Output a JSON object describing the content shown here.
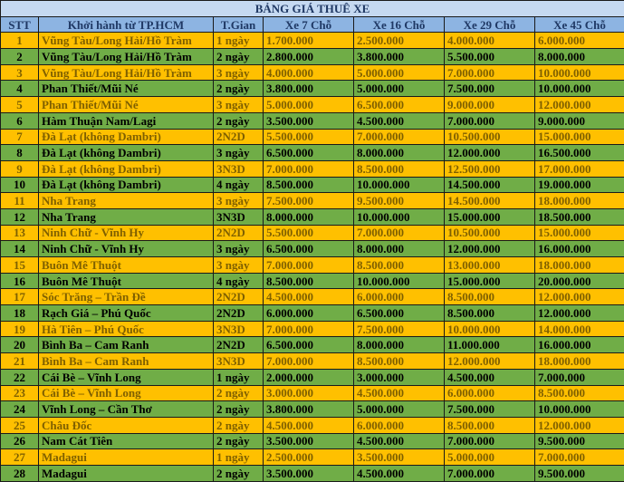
{
  "colors": {
    "title_bg": "#c5d9f1",
    "header_bg": "#8db4e2",
    "green": "#70ad47",
    "yellow": "#ffc000"
  },
  "title": "BẢNG GIÁ THUÊ XE",
  "headers": [
    "STT",
    "Khởi hành từ TP.HCM",
    "T.Gian",
    "Xe 7 Chỗ",
    "Xe 16 Chỗ",
    "Xe 29 Chỗ",
    "Xe 45 Chỗ"
  ],
  "rows": [
    {
      "color": "yellow",
      "stt": "1",
      "route": "Vũng Tàu/Long Hải/Hồ Tràm",
      "time": "1 ngày",
      "p7": "1.700.000",
      "p16": "2.500.000",
      "p29": "4.000.000",
      "p45": "6.000.000"
    },
    {
      "color": "green",
      "stt": "2",
      "route": "Vũng Tàu/Long Hải/Hồ Tràm",
      "time": "2 ngày",
      "p7": "2.800.000",
      "p16": "3.800.000",
      "p29": "5.500.000",
      "p45": "8.000.000"
    },
    {
      "color": "yellow",
      "stt": "3",
      "route": "Vũng Tàu/Long Hải/Hồ Tràm",
      "time": "3 ngày",
      "p7": "4.000.000",
      "p16": "5.000.000",
      "p29": "7.000.000",
      "p45": "10.000.000"
    },
    {
      "color": "green",
      "stt": "4",
      "route": "Phan Thiết/Mũi Né",
      "time": "2 ngày",
      "p7": "3.800.000",
      "p16": "5.000.000",
      "p29": "7.500.000",
      "p45": "10.000.000"
    },
    {
      "color": "yellow",
      "stt": "5",
      "route": "Phan Thiết/Mũi Né",
      "time": "3 ngày",
      "p7": "5.000.000",
      "p16": "6.500.000",
      "p29": "9.000.000",
      "p45": "12.000.000"
    },
    {
      "color": "green",
      "stt": "6",
      "route": "Hàm Thuận Nam/Lagi",
      "time": "2 ngày",
      "p7": "3.500.000",
      "p16": "4.500.000",
      "p29": "7.000.000",
      "p45": "9.000.000"
    },
    {
      "color": "yellow",
      "stt": "7",
      "route": "Đà Lạt (không Dambri)",
      "time": "2N2D",
      "p7": "5.500.000",
      "p16": "7.000.000",
      "p29": "10.500.000",
      "p45": "15.000.000"
    },
    {
      "color": "green",
      "stt": "8",
      "route": "Đà Lạt (không Dambri)",
      "time": "3 ngày",
      "p7": "6.500.000",
      "p16": "8.000.000",
      "p29": "12.000.000",
      "p45": "16.500.000"
    },
    {
      "color": "yellow",
      "stt": "9",
      "route": "Đà Lạt (không Dambri)",
      "time": "3N3D",
      "p7": "7.000.000",
      "p16": "8.500.000",
      "p29": "12.500.000",
      "p45": "17.000.000"
    },
    {
      "color": "green",
      "stt": "10",
      "route": "Đà Lạt (không Dambri)",
      "time": "4 ngày",
      "p7": "8.500.000",
      "p16": "10.000.000",
      "p29": "14.500.000",
      "p45": "19.000.000"
    },
    {
      "color": "yellow",
      "stt": "11",
      "route": "Nha Trang",
      "time": "3 ngày",
      "p7": "7.500.000",
      "p16": "9.500.000",
      "p29": "14.500.000",
      "p45": "18.000.000"
    },
    {
      "color": "green",
      "stt": "12",
      "route": "Nha Trang",
      "time": "3N3D",
      "p7": "8.000.000",
      "p16": "10.000.000",
      "p29": "15.000.000",
      "p45": "18.500.000"
    },
    {
      "color": "yellow",
      "stt": "13",
      "route": "Ninh Chữ - Vĩnh Hy",
      "time": "2N2D",
      "p7": "5.500.000",
      "p16": "7.000.000",
      "p29": "10.500.000",
      "p45": "15.000.000"
    },
    {
      "color": "green",
      "stt": "14",
      "route": "Ninh Chữ - Vĩnh Hy",
      "time": "3 ngày",
      "p7": "6.500.000",
      "p16": "8.000.000",
      "p29": "12.000.000",
      "p45": "16.000.000"
    },
    {
      "color": "yellow",
      "stt": "15",
      "route": "Buôn Mê Thuột",
      "time": "3 ngày",
      "p7": "7.000.000",
      "p16": "8.500.000",
      "p29": "13.000.000",
      "p45": "18.000.000"
    },
    {
      "color": "green",
      "stt": "16",
      "route": "Buôn Mê Thuột",
      "time": "4 ngày",
      "p7": "8.500.000",
      "p16": "10.000.000",
      "p29": "15.000.000",
      "p45": "20.000.000"
    },
    {
      "color": "yellow",
      "stt": "17",
      "route": "Sóc Trăng – Trần Đề",
      "time": "2N2D",
      "p7": "4.500.000",
      "p16": "6.000.000",
      "p29": "8.500.000",
      "p45": "12.000.000"
    },
    {
      "color": "green",
      "stt": "18",
      "route": "Rạch Giá – Phú Quốc",
      "time": "2N2D",
      "p7": "6.000.000",
      "p16": "6.500.000",
      "p29": "8.500.000",
      "p45": "12.000.000"
    },
    {
      "color": "yellow",
      "stt": "19",
      "route": "Hà Tiên – Phú Quốc",
      "time": "3N3D",
      "p7": "7.000.000",
      "p16": "7.500.000",
      "p29": "10.000.000",
      "p45": "14.000.000"
    },
    {
      "color": "green",
      "stt": "20",
      "route": "Bình Ba – Cam Ranh",
      "time": "2N2D",
      "p7": "6.500.000",
      "p16": "8.000.000",
      "p29": "11.000.000",
      "p45": "16.000.000"
    },
    {
      "color": "yellow",
      "stt": "21",
      "route": "Bình Ba – Cam Ranh",
      "time": "3N3D",
      "p7": "7.000.000",
      "p16": "8.500.000",
      "p29": "12.000.000",
      "p45": "18.000.000"
    },
    {
      "color": "green",
      "stt": "22",
      "route": "Cái Bè – Vĩnh Long",
      "time": "1 ngày",
      "p7": "2.000.000",
      "p16": "3.000.000",
      "p29": "4.500.000",
      "p45": "7.000.000"
    },
    {
      "color": "yellow",
      "stt": "23",
      "route": "Cái Bè – Vĩnh Long",
      "time": "2 ngày",
      "p7": "3.000.000",
      "p16": "4.500.000",
      "p29": "6.000.000",
      "p45": "8.500.000"
    },
    {
      "color": "green",
      "stt": "24",
      "route": "Vĩnh Long – Cần Thơ",
      "time": "2 ngày",
      "p7": "3.800.000",
      "p16": "5.000.000",
      "p29": "7.500.000",
      "p45": "10.000.000"
    },
    {
      "color": "yellow",
      "stt": "25",
      "route": "Châu Đốc",
      "time": "2 ngày",
      "p7": "4.500.000",
      "p16": "6.000.000",
      "p29": "8.500.000",
      "p45": "12.000.000"
    },
    {
      "color": "green",
      "stt": "26",
      "route": "Nam Cát Tiên",
      "time": "2 ngày",
      "p7": "3.500.000",
      "p16": "4.500.000",
      "p29": "7.000.000",
      "p45": "9.500.000"
    },
    {
      "color": "yellow",
      "stt": "27",
      "route": "Madagui",
      "time": "1 ngày",
      "p7": "2.500.000",
      "p16": "3.500.000",
      "p29": "5.000.000",
      "p45": "7.000.000"
    },
    {
      "color": "green",
      "stt": "28",
      "route": "Madagui",
      "time": "2 ngày",
      "p7": "3.500.000",
      "p16": "4.500.000",
      "p29": "7.000.000",
      "p45": "9.500.000"
    }
  ]
}
